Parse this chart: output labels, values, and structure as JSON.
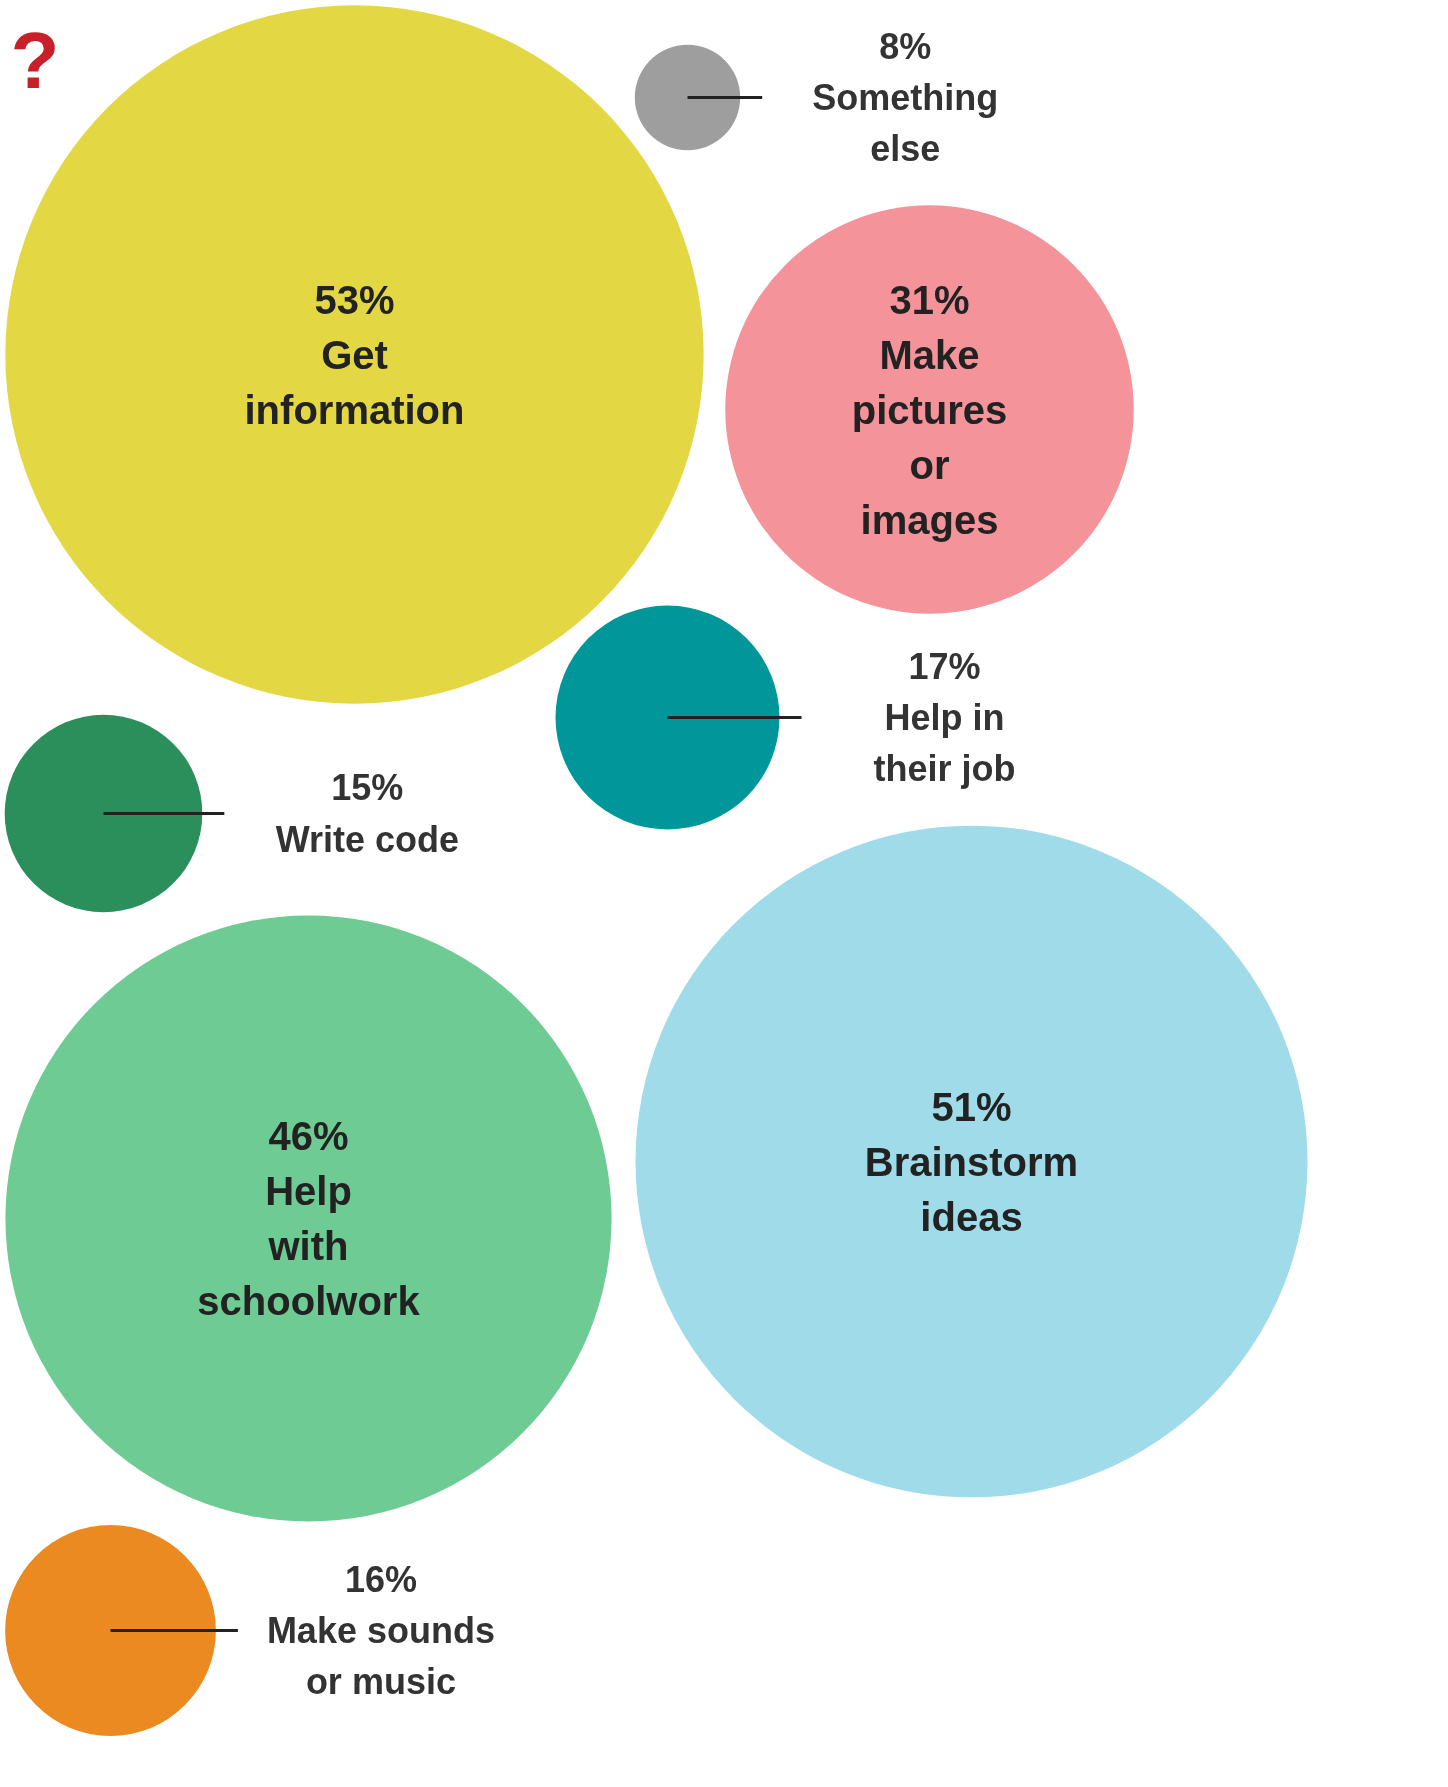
{
  "chart_data": {
    "type": "other",
    "categories": [
      "Get information",
      "Something else",
      "Make pictures or images",
      "Write code",
      "Help in their job",
      "Help with schoolwork",
      "Brainstorm ideas",
      "Make sounds or music"
    ],
    "values": [
      53,
      8,
      31,
      15,
      17,
      46,
      51,
      16
    ],
    "value_labels": [
      "53%",
      "8%",
      "31%",
      "15%",
      "17%",
      "46%",
      "51%",
      "16%"
    ],
    "colors": [
      "#e3d843",
      "#9e9e9e",
      "#f4939a",
      "#2a8f5a",
      "#00969a",
      "#6fcb94",
      "#9fdbe8",
      "#ec8a22"
    ],
    "annotations": [
      "?"
    ]
  }
}
